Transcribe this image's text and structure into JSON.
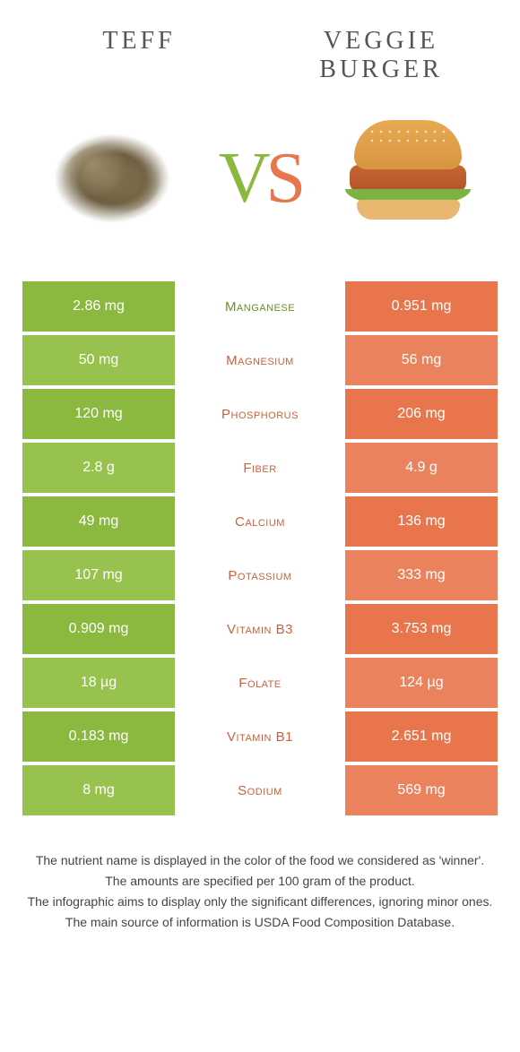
{
  "colors": {
    "left": "#8bb83f",
    "left_alt": "#97c24d",
    "right": "#e8754b",
    "right_alt": "#ea835d",
    "mid_green": "#6a8f2f",
    "mid_orange": "#c9613d"
  },
  "header": {
    "left_title": "Teff",
    "right_title": "Veggie burger"
  },
  "vs": {
    "v": "V",
    "s": "S"
  },
  "rows": [
    {
      "left": "2.86 mg",
      "mid": "Manganese",
      "right": "0.951 mg",
      "winner": "left"
    },
    {
      "left": "50 mg",
      "mid": "Magnesium",
      "right": "56 mg",
      "winner": "right"
    },
    {
      "left": "120 mg",
      "mid": "Phosphorus",
      "right": "206 mg",
      "winner": "right"
    },
    {
      "left": "2.8 g",
      "mid": "Fiber",
      "right": "4.9 g",
      "winner": "right"
    },
    {
      "left": "49 mg",
      "mid": "Calcium",
      "right": "136 mg",
      "winner": "right"
    },
    {
      "left": "107 mg",
      "mid": "Potassium",
      "right": "333 mg",
      "winner": "right"
    },
    {
      "left": "0.909 mg",
      "mid": "Vitamin B3",
      "right": "3.753 mg",
      "winner": "right"
    },
    {
      "left": "18 µg",
      "mid": "Folate",
      "right": "124 µg",
      "winner": "right"
    },
    {
      "left": "0.183 mg",
      "mid": "Vitamin B1",
      "right": "2.651 mg",
      "winner": "right"
    },
    {
      "left": "8 mg",
      "mid": "Sodium",
      "right": "569 mg",
      "winner": "right"
    }
  ],
  "footer": {
    "line1": "The nutrient name is displayed in the color of the food we considered as 'winner'.",
    "line2": "The amounts are specified per 100 gram of the product.",
    "line3": "The infographic aims to display only the significant differences, ignoring minor ones.",
    "line4": "The main source of information is USDA Food Composition Database."
  }
}
